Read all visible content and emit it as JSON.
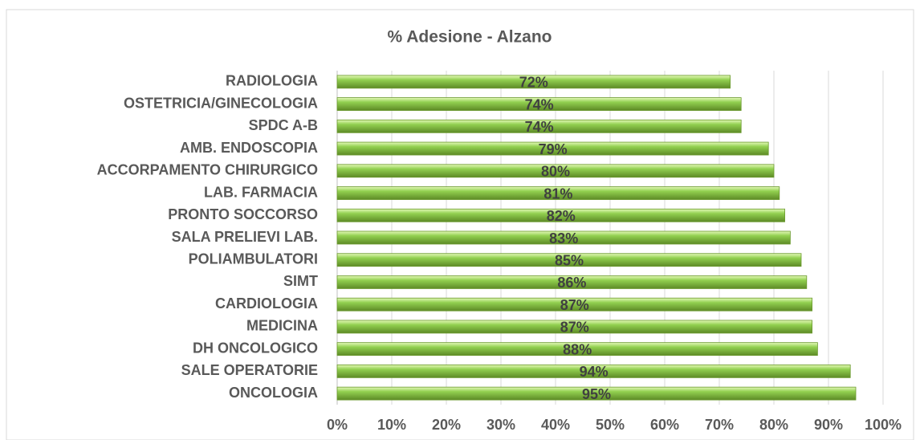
{
  "chart_data": {
    "type": "bar",
    "orientation": "horizontal",
    "title": "% Adesione - Alzano",
    "categories": [
      "RADIOLOGIA",
      "OSTETRICIA/GINECOLOGIA",
      "SPDC A-B",
      "AMB. ENDOSCOPIA",
      "ACCORPAMENTO CHIRURGICO",
      "LAB. FARMACIA",
      "PRONTO SOCCORSO",
      "SALA PRELIEVI LAB.",
      "POLIAMBULATORI",
      "SIMT",
      "CARDIOLOGIA",
      "MEDICINA",
      "DH ONCOLOGICO",
      "SALE OPERATORIE",
      "ONCOLOGIA"
    ],
    "values": [
      72,
      74,
      74,
      79,
      80,
      81,
      82,
      83,
      85,
      86,
      87,
      87,
      88,
      94,
      95
    ],
    "value_labels": [
      "72%",
      "74%",
      "74%",
      "79%",
      "80%",
      "81%",
      "82%",
      "83%",
      "85%",
      "86%",
      "87%",
      "87%",
      "88%",
      "94%",
      "95%"
    ],
    "color": "#92d050",
    "xlim": [
      0,
      100
    ],
    "xticks": [
      {
        "value": 0,
        "label": "0%"
      },
      {
        "value": 10,
        "label": "10%"
      },
      {
        "value": 20,
        "label": "20%"
      },
      {
        "value": 30,
        "label": "30%"
      },
      {
        "value": 40,
        "label": "40%"
      },
      {
        "value": 50,
        "label": "50%"
      },
      {
        "value": 60,
        "label": "60%"
      },
      {
        "value": 70,
        "label": "70%"
      },
      {
        "value": 80,
        "label": "80%"
      },
      {
        "value": 90,
        "label": "90%"
      },
      {
        "value": 100,
        "label": "100%"
      }
    ],
    "grid": true
  }
}
